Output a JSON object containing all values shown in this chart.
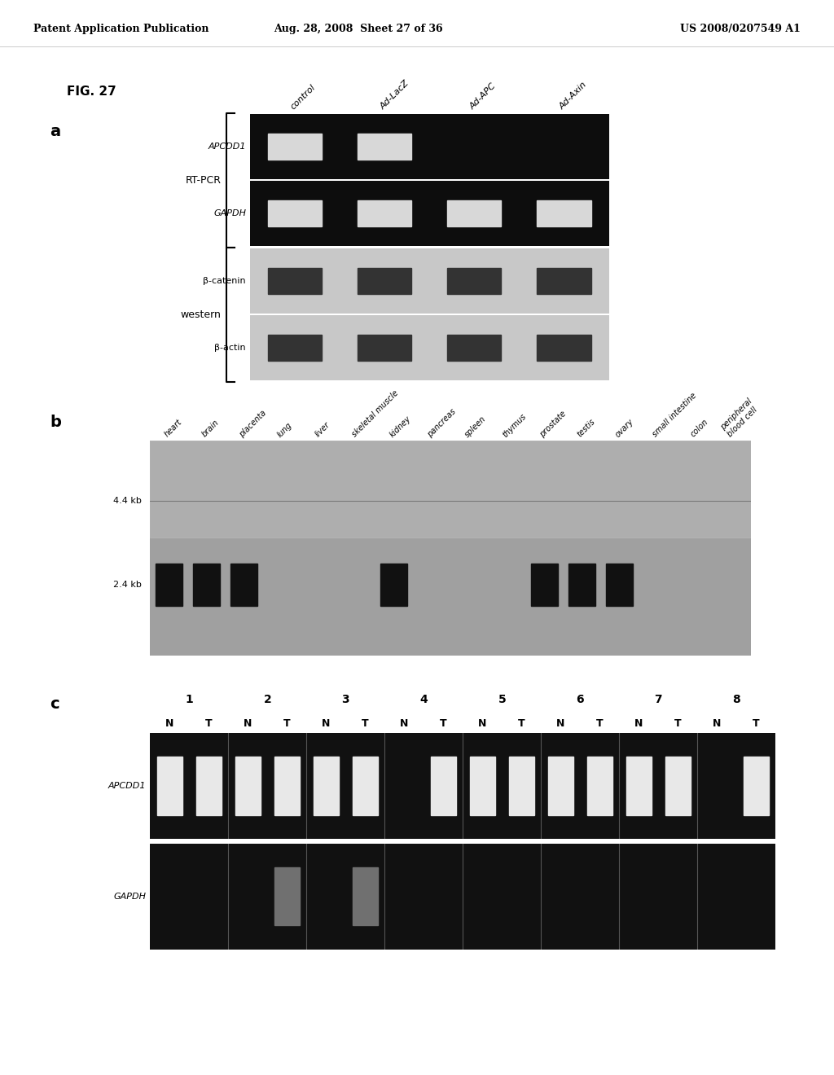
{
  "header_left": "Patent Application Publication",
  "header_mid": "Aug. 28, 2008  Sheet 27 of 36",
  "header_right": "US 2008/0207549 A1",
  "fig_label": "FIG. 27",
  "panel_a": {
    "label": "a",
    "rt_pcr_label": "RT-PCR",
    "western_label": "western",
    "col_labels": [
      "control",
      "Ad-LacZ",
      "Ad-APC",
      "Ad-Axin"
    ],
    "rows": [
      {
        "name": "APCDD1",
        "italic": true,
        "section": "rt_pcr",
        "bands": [
          1,
          1,
          0,
          0
        ]
      },
      {
        "name": "GAPDH",
        "italic": true,
        "section": "rt_pcr",
        "bands": [
          1,
          1,
          1,
          1
        ]
      },
      {
        "name": "β-catenin",
        "italic": false,
        "section": "western",
        "bands": [
          1,
          1,
          1,
          1
        ]
      },
      {
        "name": "β-actin",
        "italic": false,
        "section": "western",
        "bands": [
          1,
          1,
          1,
          1
        ]
      }
    ]
  },
  "panel_b": {
    "label": "b",
    "col_labels": [
      "heart",
      "brain",
      "placenta",
      "lung",
      "liver",
      "skeletal muscle",
      "kidney",
      "pancreas",
      "spleen",
      "thymus",
      "prostate",
      "testis",
      "ovary",
      "small intestine",
      "colon",
      "peripheral\nblood cell"
    ],
    "marker_44": "4.4 kb",
    "marker_24": "2.4 kb",
    "bands_24": [
      1,
      1,
      1,
      0,
      0,
      0,
      1,
      0,
      0,
      0,
      1,
      1,
      1,
      0,
      0,
      0
    ]
  },
  "panel_c": {
    "label": "c",
    "numbers": [
      "1",
      "2",
      "3",
      "4",
      "5",
      "6",
      "7",
      "8"
    ],
    "nt_labels": [
      "N",
      "T",
      "N",
      "T",
      "N",
      "T",
      "N",
      "T",
      "N",
      "T",
      "N",
      "T",
      "N",
      "T",
      "N",
      "T"
    ],
    "rows": [
      {
        "name": "APCDD1",
        "italic": true,
        "bands": [
          1,
          1,
          1,
          1,
          1,
          1,
          0,
          1,
          1,
          1,
          1,
          1,
          1,
          1,
          0,
          1
        ]
      },
      {
        "name": "GAPDH",
        "italic": true,
        "bands": [
          0,
          0,
          0,
          1,
          0,
          1,
          0,
          0,
          0,
          0,
          0,
          0,
          0,
          0,
          0,
          0
        ]
      }
    ]
  },
  "bg_color": "#ffffff"
}
